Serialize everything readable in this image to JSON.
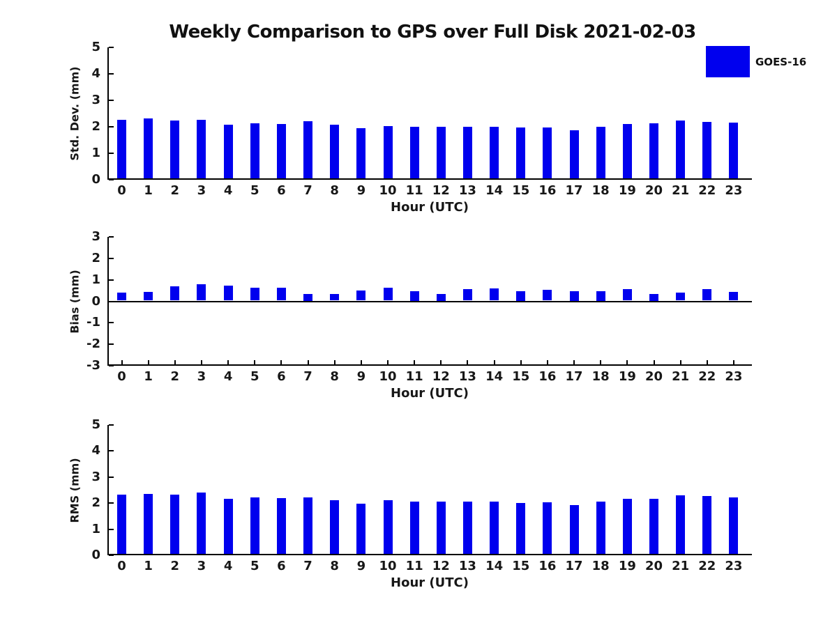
{
  "title": "Weekly Comparison to GPS over Full Disk 2021-02-03",
  "legend": {
    "label": "GOES-16",
    "color": "#0000ee"
  },
  "colors": {
    "bar": "#0000ee",
    "axis": "#000000",
    "text": "#171717",
    "background": "#ffffff"
  },
  "chart_data": [
    {
      "type": "bar",
      "panel": "std-dev",
      "series_name": "GOES-16",
      "ylabel": "Std. Dev. (mm)",
      "xlabel": "Hour (UTC)",
      "ylim": [
        0,
        5
      ],
      "yticks": [
        5,
        4,
        3,
        2,
        1,
        0
      ],
      "grid": false,
      "categories": [
        "0",
        "1",
        "2",
        "3",
        "4",
        "5",
        "6",
        "7",
        "8",
        "9",
        "10",
        "11",
        "12",
        "13",
        "14",
        "15",
        "16",
        "17",
        "18",
        "19",
        "20",
        "21",
        "22",
        "23"
      ],
      "values": [
        2.2,
        2.26,
        2.18,
        2.2,
        2.02,
        2.07,
        2.05,
        2.15,
        2.03,
        1.9,
        1.97,
        1.94,
        1.96,
        1.96,
        1.94,
        1.91,
        1.91,
        1.81,
        1.94,
        2.06,
        2.09,
        2.19,
        2.14,
        2.11
      ]
    },
    {
      "type": "bar",
      "panel": "bias",
      "series_name": "GOES-16",
      "ylabel": "Bias (mm)",
      "xlabel": "Hour (UTC)",
      "ylim": [
        -3,
        3
      ],
      "yticks": [
        3,
        2,
        1,
        0,
        -1,
        -2,
        -3
      ],
      "grid": false,
      "categories": [
        "0",
        "1",
        "2",
        "3",
        "4",
        "5",
        "6",
        "7",
        "8",
        "9",
        "10",
        "11",
        "12",
        "13",
        "14",
        "15",
        "16",
        "17",
        "18",
        "19",
        "20",
        "21",
        "22",
        "23"
      ],
      "values": [
        0.36,
        0.42,
        0.66,
        0.77,
        0.7,
        0.61,
        0.61,
        0.3,
        0.32,
        0.48,
        0.61,
        0.45,
        0.3,
        0.52,
        0.57,
        0.45,
        0.5,
        0.45,
        0.45,
        0.52,
        0.3,
        0.37,
        0.55,
        0.39
      ]
    },
    {
      "type": "bar",
      "panel": "rms",
      "series_name": "GOES-16",
      "ylabel": "RMS (mm)",
      "xlabel": "Hour (UTC)",
      "ylim": [
        0,
        5
      ],
      "yticks": [
        5,
        4,
        3,
        2,
        1,
        0
      ],
      "grid": false,
      "categories": [
        "0",
        "1",
        "2",
        "3",
        "4",
        "5",
        "6",
        "7",
        "8",
        "9",
        "10",
        "11",
        "12",
        "13",
        "14",
        "15",
        "16",
        "17",
        "18",
        "19",
        "20",
        "21",
        "22",
        "23"
      ],
      "values": [
        2.26,
        2.31,
        2.28,
        2.35,
        2.11,
        2.16,
        2.14,
        2.17,
        2.06,
        1.93,
        2.06,
        2.01,
        2.01,
        2.01,
        2.0,
        1.96,
        1.97,
        1.86,
        2.0,
        2.1,
        2.11,
        2.25,
        2.22,
        2.17
      ]
    }
  ]
}
